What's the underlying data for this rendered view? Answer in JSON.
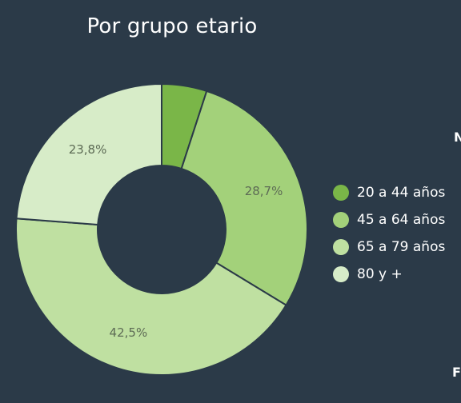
{
  "chart_data": {
    "type": "pie",
    "title": "Por grupo etario",
    "donut": true,
    "categories": [
      "20 a 44 años",
      "45 a 64 años",
      "65 a 79 años",
      "80 y +"
    ],
    "values": [
      5.0,
      28.7,
      42.5,
      23.8
    ],
    "labels": [
      "",
      "28,7%",
      "42,5%",
      "23,8%"
    ],
    "colors": [
      "#7ab648",
      "#a3d17a",
      "#bfe0a1",
      "#d7ecc8"
    ],
    "legend_position": "right"
  },
  "edge_text": {
    "right_top": "N",
    "right_bottom": "F"
  }
}
